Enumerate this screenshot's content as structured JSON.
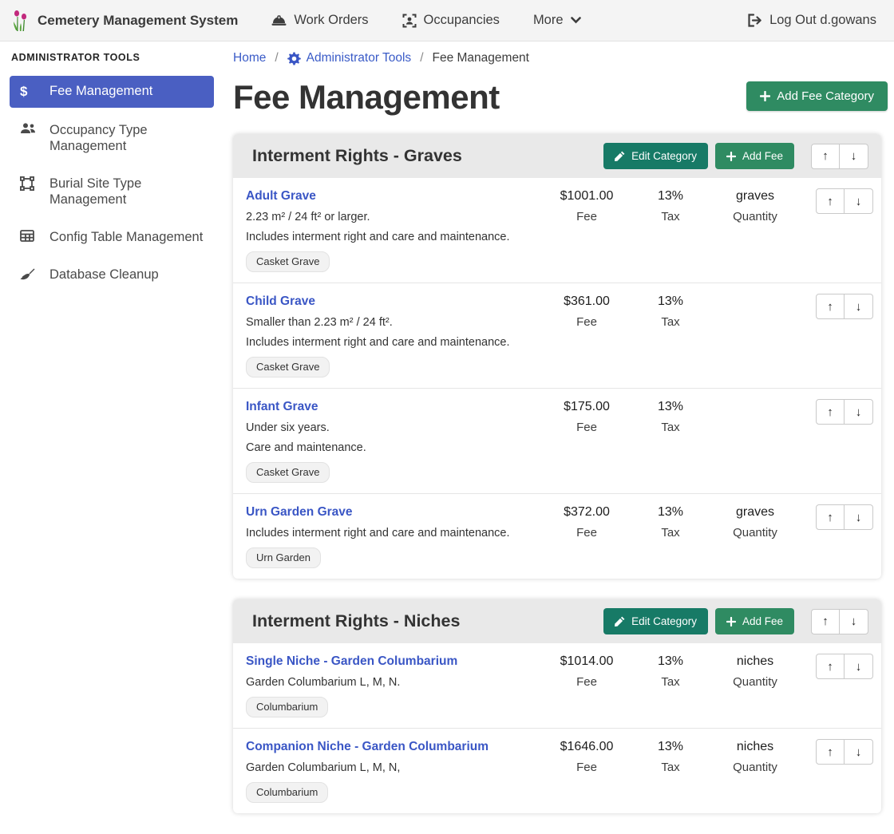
{
  "navbar": {
    "brand": "Cemetery Management System",
    "work_orders": "Work Orders",
    "occupancies": "Occupancies",
    "more": "More",
    "logout": "Log Out d.gowans"
  },
  "sidebar": {
    "heading": "ADMINISTRATOR TOOLS",
    "items": [
      {
        "label": "Fee Management",
        "icon": "dollar-icon",
        "active": true
      },
      {
        "label": "Occupancy Type Management",
        "icon": "people-icon",
        "active": false
      },
      {
        "label": "Burial Site Type Management",
        "icon": "frame-icon",
        "active": false
      },
      {
        "label": "Config Table Management",
        "icon": "table-icon",
        "active": false
      },
      {
        "label": "Database Cleanup",
        "icon": "broom-icon",
        "active": false
      }
    ]
  },
  "breadcrumb": {
    "home": "Home",
    "admin_tools": "Administrator Tools",
    "current": "Fee Management",
    "separator": "/"
  },
  "page": {
    "title": "Fee Management",
    "add_category_label": "Add Fee Category"
  },
  "labels": {
    "edit_category": "Edit Category",
    "add_fee": "Add Fee",
    "fee": "Fee",
    "tax": "Tax",
    "quantity": "Quantity",
    "up_arrow": "↑",
    "down_arrow": "↓"
  },
  "colors": {
    "accent_blue": "#4a5fc2",
    "link_blue": "#3a56c5",
    "green_button": "#2f8b62",
    "teal_button": "#177a66",
    "card_header_gray": "#e9e9e9",
    "navbar_gray": "#f4f4f4"
  },
  "categories": [
    {
      "title": "Interment Rights - Graves",
      "fees": [
        {
          "name": "Adult Grave",
          "descriptions": [
            "2.23 m² / 24 ft² or larger.",
            "Includes interment right and care and maintenance."
          ],
          "badge": "Casket Grave",
          "fee": "$1001.00",
          "tax": "13%",
          "quantity": "graves"
        },
        {
          "name": "Child Grave",
          "descriptions": [
            "Smaller than 2.23 m² / 24 ft².",
            "Includes interment right and care and maintenance."
          ],
          "badge": "Casket Grave",
          "fee": "$361.00",
          "tax": "13%",
          "quantity": null
        },
        {
          "name": "Infant Grave",
          "descriptions": [
            "Under six years.",
            "Care and maintenance."
          ],
          "badge": "Casket Grave",
          "fee": "$175.00",
          "tax": "13%",
          "quantity": null
        },
        {
          "name": "Urn Garden Grave",
          "descriptions": [
            "Includes interment right and care and maintenance."
          ],
          "badge": "Urn Garden",
          "fee": "$372.00",
          "tax": "13%",
          "quantity": "graves"
        }
      ]
    },
    {
      "title": "Interment Rights - Niches",
      "fees": [
        {
          "name": "Single Niche - Garden Columbarium",
          "descriptions": [
            "Garden Columbarium L, M, N."
          ],
          "badge": "Columbarium",
          "fee": "$1014.00",
          "tax": "13%",
          "quantity": "niches"
        },
        {
          "name": "Companion Niche - Garden Columbarium",
          "descriptions": [
            "Garden Columbarium L, M, N,"
          ],
          "badge": "Columbarium",
          "fee": "$1646.00",
          "tax": "13%",
          "quantity": "niches"
        }
      ]
    }
  ]
}
